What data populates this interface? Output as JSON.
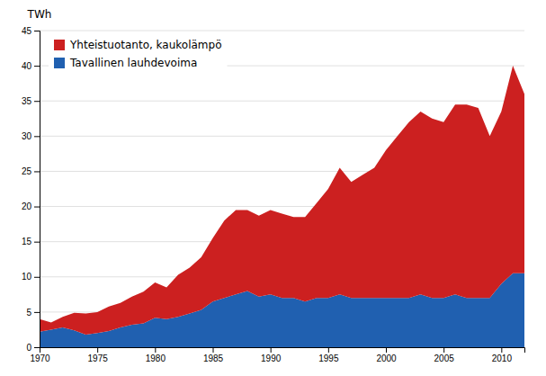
{
  "chart_data": {
    "type": "area",
    "stacked": true,
    "ylabel": "TWh",
    "x": [
      1970,
      1971,
      1972,
      1973,
      1974,
      1975,
      1976,
      1977,
      1978,
      1979,
      1980,
      1981,
      1982,
      1983,
      1984,
      1985,
      1986,
      1987,
      1988,
      1989,
      1990,
      1991,
      1992,
      1993,
      1994,
      1995,
      1996,
      1997,
      1998,
      1999,
      2000,
      2001,
      2002,
      2003,
      2004,
      2005,
      2006,
      2007,
      2008,
      2009,
      2010,
      2011,
      2012
    ],
    "series": [
      {
        "name": "Tavallinen lauhdevoima",
        "color": "#2060B0",
        "values": [
          2.2,
          2.5,
          2.8,
          2.4,
          1.8,
          2.0,
          2.3,
          2.8,
          3.2,
          3.4,
          4.2,
          4.0,
          4.3,
          4.8,
          5.3,
          6.5,
          7.0,
          7.5,
          8.0,
          7.2,
          7.5,
          7.0,
          7.0,
          6.5,
          7.0,
          7.0,
          7.5,
          7.0,
          7.0,
          7.0,
          7.0,
          7.0,
          7.0,
          7.5,
          7.0,
          7.0,
          7.5,
          7.0,
          7.0,
          7.0,
          9.0,
          10.5,
          10.5
        ]
      },
      {
        "name": "Yhteistuotanto, kaukolämpö",
        "color": "#CC2020",
        "values": [
          1.8,
          1.0,
          1.5,
          2.5,
          3.0,
          3.0,
          3.5,
          3.5,
          4.0,
          4.5,
          5.0,
          4.5,
          6.0,
          6.5,
          7.5,
          9.0,
          11.0,
          12.0,
          11.5,
          11.5,
          12.0,
          12.0,
          11.5,
          12.0,
          13.5,
          15.5,
          18.0,
          16.5,
          17.5,
          18.5,
          21.0,
          23.0,
          25.0,
          26.0,
          25.5,
          25.0,
          27.0,
          27.5,
          27.0,
          23.0,
          24.5,
          29.5,
          25.5
        ]
      }
    ],
    "xlim": [
      1970,
      2012
    ],
    "xticks": [
      1970,
      1975,
      1980,
      1985,
      1990,
      1995,
      2000,
      2005,
      2010
    ],
    "ylim": [
      0,
      45
    ],
    "yticks": [
      0,
      5,
      10,
      15,
      20,
      25,
      30,
      35,
      40,
      45
    ],
    "grid": true,
    "legend": "top-left"
  }
}
